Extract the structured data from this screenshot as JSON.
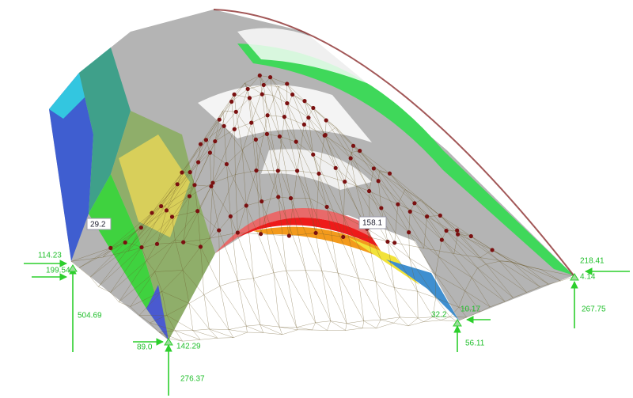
{
  "supports": [
    {
      "labels": [
        "114.23",
        "199.54",
        "504.69"
      ],
      "callout": "29.2"
    },
    {
      "labels": [
        "89.0",
        "142.29",
        "276.37"
      ]
    },
    {
      "labels": [
        "32.2",
        "10.17",
        "56.11"
      ],
      "callout": "158.1"
    },
    {
      "labels": [
        "218.41",
        "4.14",
        "267.75"
      ]
    }
  ]
}
